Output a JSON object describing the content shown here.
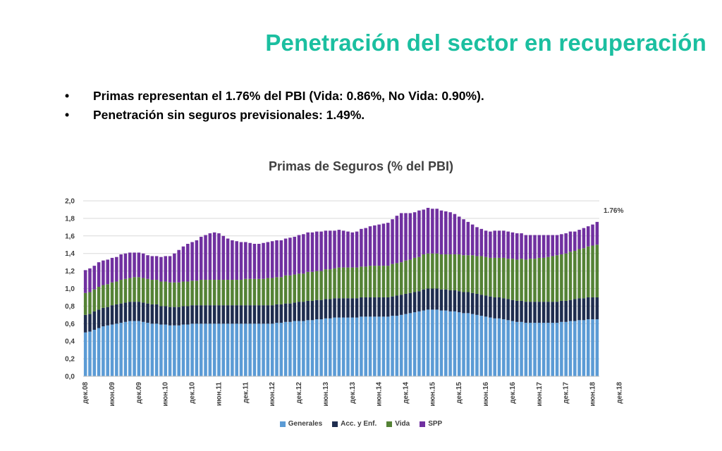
{
  "slide": {
    "title": "Penetración del sector en recuperación",
    "title_color": "#1bbfa0",
    "bullets": [
      {
        "marker": "•",
        "text": "Primas representan el 1.76% del PBI (Vida: 0.86%, No Vida: 0.90%)."
      },
      {
        "marker": "•",
        "text": "Penetración sin seguros previsionales: 1.49%."
      }
    ]
  },
  "chart_data": {
    "type": "bar",
    "stacked": true,
    "title": "Primas de Seguros (% del PBI)",
    "end_label": "1.76%",
    "ylim": [
      0,
      2.0
    ],
    "y_ticks": [
      "0,0",
      "0,2",
      "0,4",
      "0,6",
      "0,8",
      "1,0",
      "1,2",
      "1,4",
      "1,6",
      "1,8",
      "2,0"
    ],
    "x_tick_labels": [
      "дек.08",
      "июн.09",
      "дек.09",
      "июн.10",
      "дек.10",
      "июн.11",
      "дек.11",
      "июн.12",
      "дек.12",
      "июн.13",
      "дек.13",
      "июн.14",
      "дек.14",
      "июн.15",
      "дек.15",
      "июн.16",
      "дек.16",
      "июн.17",
      "дек.17",
      "июн.18",
      "дек.18"
    ],
    "x_tick_every": 6,
    "grid": true,
    "legend_position": "bottom",
    "series": [
      {
        "name": "Generales",
        "color": "#5b9bd5",
        "values": [
          0.5,
          0.51,
          0.53,
          0.55,
          0.57,
          0.58,
          0.59,
          0.6,
          0.61,
          0.62,
          0.63,
          0.63,
          0.63,
          0.62,
          0.61,
          0.6,
          0.6,
          0.59,
          0.59,
          0.58,
          0.58,
          0.58,
          0.59,
          0.59,
          0.6,
          0.6,
          0.6,
          0.6,
          0.6,
          0.6,
          0.6,
          0.6,
          0.6,
          0.6,
          0.6,
          0.6,
          0.6,
          0.6,
          0.6,
          0.6,
          0.6,
          0.6,
          0.6,
          0.61,
          0.61,
          0.62,
          0.62,
          0.63,
          0.63,
          0.63,
          0.64,
          0.64,
          0.65,
          0.65,
          0.66,
          0.66,
          0.67,
          0.67,
          0.67,
          0.67,
          0.67,
          0.67,
          0.68,
          0.68,
          0.68,
          0.68,
          0.68,
          0.68,
          0.68,
          0.69,
          0.69,
          0.7,
          0.71,
          0.72,
          0.73,
          0.74,
          0.75,
          0.76,
          0.76,
          0.76,
          0.75,
          0.75,
          0.74,
          0.74,
          0.73,
          0.72,
          0.72,
          0.71,
          0.7,
          0.69,
          0.68,
          0.67,
          0.66,
          0.66,
          0.65,
          0.64,
          0.63,
          0.62,
          0.62,
          0.61,
          0.61,
          0.61,
          0.61,
          0.61,
          0.61,
          0.61,
          0.61,
          0.62,
          0.62,
          0.63,
          0.63,
          0.64,
          0.64,
          0.65,
          0.65,
          0.65
        ]
      },
      {
        "name": "Acc. y Enf.",
        "color": "#1f2d4f",
        "values": [
          0.2,
          0.2,
          0.21,
          0.21,
          0.21,
          0.21,
          0.22,
          0.22,
          0.22,
          0.22,
          0.22,
          0.22,
          0.22,
          0.22,
          0.22,
          0.22,
          0.22,
          0.21,
          0.21,
          0.21,
          0.21,
          0.21,
          0.21,
          0.21,
          0.21,
          0.21,
          0.21,
          0.21,
          0.21,
          0.21,
          0.21,
          0.21,
          0.21,
          0.21,
          0.21,
          0.21,
          0.21,
          0.21,
          0.21,
          0.21,
          0.21,
          0.21,
          0.21,
          0.21,
          0.21,
          0.21,
          0.21,
          0.21,
          0.22,
          0.22,
          0.22,
          0.22,
          0.22,
          0.22,
          0.22,
          0.22,
          0.22,
          0.22,
          0.22,
          0.22,
          0.22,
          0.22,
          0.22,
          0.22,
          0.22,
          0.22,
          0.22,
          0.22,
          0.22,
          0.22,
          0.23,
          0.23,
          0.23,
          0.23,
          0.23,
          0.23,
          0.24,
          0.24,
          0.24,
          0.24,
          0.24,
          0.24,
          0.24,
          0.24,
          0.24,
          0.24,
          0.24,
          0.24,
          0.24,
          0.24,
          0.24,
          0.24,
          0.24,
          0.24,
          0.24,
          0.24,
          0.24,
          0.24,
          0.24,
          0.24,
          0.24,
          0.24,
          0.24,
          0.24,
          0.24,
          0.24,
          0.24,
          0.24,
          0.24,
          0.24,
          0.25,
          0.25,
          0.25,
          0.25,
          0.25,
          0.25
        ]
      },
      {
        "name": "Vida",
        "color": "#548235",
        "values": [
          0.25,
          0.25,
          0.25,
          0.26,
          0.26,
          0.26,
          0.26,
          0.26,
          0.27,
          0.27,
          0.27,
          0.28,
          0.28,
          0.28,
          0.28,
          0.28,
          0.28,
          0.28,
          0.28,
          0.28,
          0.28,
          0.28,
          0.28,
          0.28,
          0.28,
          0.28,
          0.29,
          0.29,
          0.29,
          0.29,
          0.29,
          0.29,
          0.29,
          0.29,
          0.29,
          0.29,
          0.3,
          0.3,
          0.3,
          0.3,
          0.3,
          0.31,
          0.31,
          0.31,
          0.31,
          0.32,
          0.32,
          0.32,
          0.32,
          0.32,
          0.33,
          0.33,
          0.33,
          0.33,
          0.34,
          0.34,
          0.34,
          0.35,
          0.35,
          0.35,
          0.35,
          0.35,
          0.35,
          0.35,
          0.36,
          0.36,
          0.36,
          0.36,
          0.36,
          0.37,
          0.37,
          0.37,
          0.38,
          0.38,
          0.39,
          0.39,
          0.4,
          0.4,
          0.4,
          0.4,
          0.4,
          0.4,
          0.41,
          0.41,
          0.42,
          0.42,
          0.42,
          0.43,
          0.43,
          0.44,
          0.44,
          0.44,
          0.45,
          0.45,
          0.46,
          0.46,
          0.47,
          0.47,
          0.48,
          0.48,
          0.49,
          0.49,
          0.5,
          0.5,
          0.51,
          0.52,
          0.53,
          0.53,
          0.54,
          0.55,
          0.55,
          0.56,
          0.57,
          0.58,
          0.59,
          0.6
        ]
      },
      {
        "name": "SPP",
        "color": "#7030a0",
        "values": [
          0.26,
          0.27,
          0.27,
          0.28,
          0.28,
          0.28,
          0.28,
          0.28,
          0.29,
          0.29,
          0.29,
          0.28,
          0.28,
          0.28,
          0.27,
          0.27,
          0.27,
          0.28,
          0.29,
          0.3,
          0.33,
          0.37,
          0.4,
          0.43,
          0.44,
          0.46,
          0.49,
          0.51,
          0.53,
          0.54,
          0.53,
          0.5,
          0.47,
          0.45,
          0.44,
          0.43,
          0.42,
          0.41,
          0.4,
          0.4,
          0.41,
          0.41,
          0.42,
          0.42,
          0.42,
          0.42,
          0.43,
          0.43,
          0.44,
          0.45,
          0.45,
          0.45,
          0.45,
          0.45,
          0.44,
          0.44,
          0.43,
          0.43,
          0.42,
          0.41,
          0.4,
          0.41,
          0.43,
          0.44,
          0.45,
          0.46,
          0.47,
          0.48,
          0.49,
          0.51,
          0.54,
          0.56,
          0.54,
          0.53,
          0.52,
          0.53,
          0.51,
          0.52,
          0.51,
          0.51,
          0.5,
          0.49,
          0.48,
          0.46,
          0.43,
          0.41,
          0.38,
          0.35,
          0.33,
          0.31,
          0.3,
          0.3,
          0.31,
          0.31,
          0.31,
          0.31,
          0.3,
          0.3,
          0.29,
          0.28,
          0.27,
          0.27,
          0.26,
          0.26,
          0.25,
          0.24,
          0.23,
          0.23,
          0.23,
          0.23,
          0.22,
          0.22,
          0.23,
          0.23,
          0.24,
          0.26
        ]
      }
    ]
  }
}
